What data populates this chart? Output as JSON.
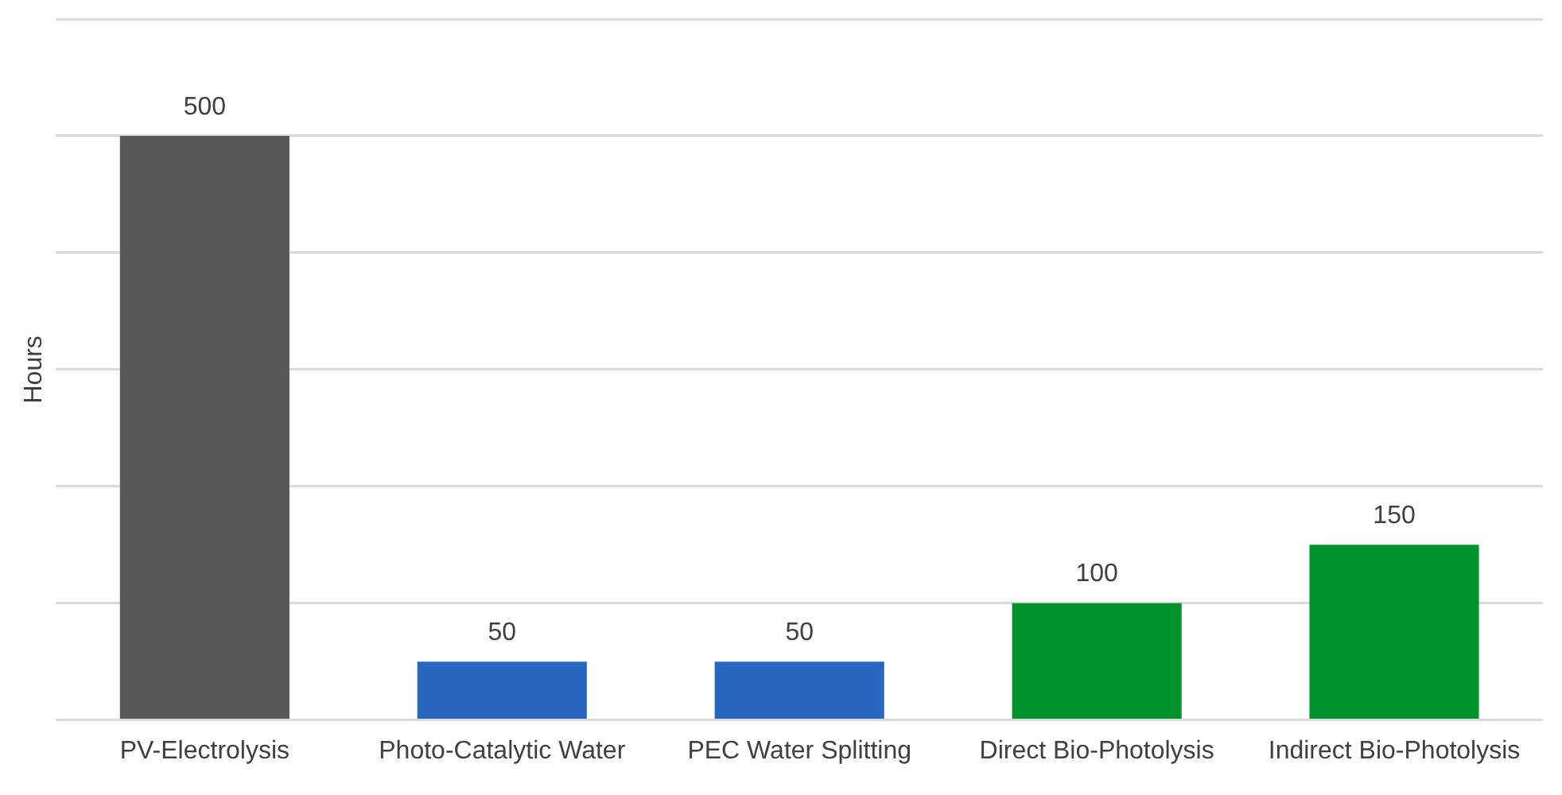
{
  "chart_data": {
    "type": "bar",
    "ylabel": "Hours",
    "categories": [
      "PV-Electrolysis",
      "Photo-Catalytic Water",
      "PEC Water Splitting",
      "Direct Bio-Photolysis",
      "Indirect Bio-Photolysis"
    ],
    "values": [
      500,
      50,
      50,
      100,
      150
    ],
    "colors": [
      "#595959",
      "#2867c0",
      "#2867c0",
      "#00922c",
      "#00922c"
    ],
    "ylim": [
      0,
      600
    ],
    "yticks": [
      {
        "value": 0,
        "label": null
      },
      {
        "value": 100,
        "label": null
      },
      {
        "value": 200,
        "label": null
      },
      {
        "value": 300,
        "label": null
      },
      {
        "value": 400,
        "label": null
      },
      {
        "value": 500,
        "label": null
      },
      {
        "value": 600,
        "label": null
      }
    ],
    "grid": "y",
    "tick_labels": "x",
    "data_labels": true,
    "legend": false
  }
}
